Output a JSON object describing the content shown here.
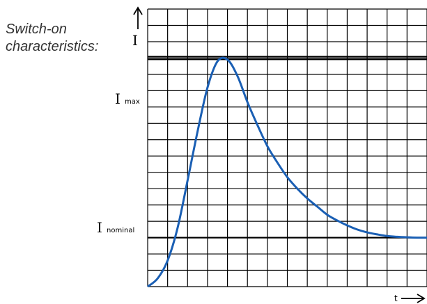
{
  "caption": {
    "line1": "Switch-on",
    "line2": "characteristics:"
  },
  "colors": {
    "curve": "#1a5fb4",
    "grid": "#000000"
  },
  "chart_data": {
    "type": "line",
    "title": "Switch-on characteristics:",
    "xlabel": "t",
    "ylabel": "I",
    "xlim": [
      0,
      14
    ],
    "ylim": [
      0,
      17
    ],
    "grid": true,
    "legend": "none",
    "reference_lines": [
      {
        "label": "I",
        "subscript": "max",
        "y": 14
      },
      {
        "label": "I",
        "subscript": "nominal",
        "y": 3
      }
    ],
    "series": [
      {
        "x": [
          0,
          0.5,
          1,
          1.5,
          2,
          2.5,
          3,
          3.5,
          4,
          4.5,
          5,
          5.5,
          6,
          6.5,
          7,
          7.5,
          8,
          8.5,
          9,
          9.5,
          10,
          10.5,
          11,
          11.5,
          12,
          12.5,
          13,
          13.5,
          14
        ],
        "values": [
          0,
          0.5,
          1.6,
          3.6,
          6.5,
          9.5,
          12.2,
          13.8,
          13.9,
          12.9,
          11.3,
          9.9,
          8.6,
          7.6,
          6.7,
          6.0,
          5.4,
          4.9,
          4.4,
          4.05,
          3.75,
          3.5,
          3.32,
          3.2,
          3.1,
          3.05,
          3.02,
          3.0,
          3.0
        ]
      }
    ]
  }
}
